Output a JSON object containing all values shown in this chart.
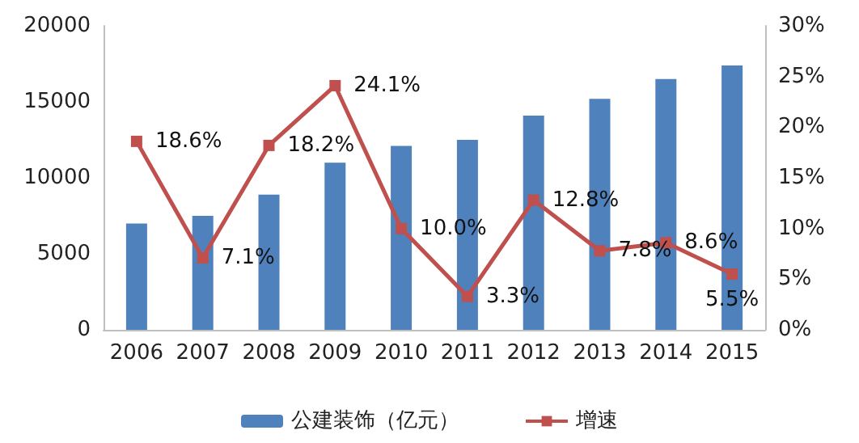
{
  "chart_data": {
    "type": "bar",
    "categories": [
      "2006",
      "2007",
      "2008",
      "2009",
      "2010",
      "2011",
      "2012",
      "2013",
      "2014",
      "2015"
    ],
    "series": [
      {
        "name": "公建装饰（亿元）",
        "type": "bar",
        "color": "#4f81bd",
        "values": [
          7000,
          7500,
          8900,
          11000,
          12100,
          12500,
          14100,
          15200,
          16500,
          17400
        ]
      },
      {
        "name": "增速",
        "type": "line",
        "axis": "y2",
        "color": "#c0504d",
        "marker": "square",
        "values": [
          18.6,
          7.1,
          18.2,
          24.1,
          10.0,
          3.3,
          12.8,
          7.8,
          8.6,
          5.5
        ],
        "value_labels": [
          "18.6%",
          "7.1%",
          "18.2%",
          "24.1%",
          "10.0%",
          "3.3%",
          "12.8%",
          "7.8%",
          "8.6%",
          "5.5%"
        ]
      }
    ],
    "ylim": [
      0,
      20000
    ],
    "yticks": [
      0,
      5000,
      10000,
      15000,
      20000
    ],
    "y2lim": [
      0,
      30
    ],
    "y2ticks": [
      {
        "value": 0,
        "label": "0%"
      },
      {
        "value": 5,
        "label": "5%"
      },
      {
        "value": 10,
        "label": "10%"
      },
      {
        "value": 15,
        "label": "15%"
      },
      {
        "value": 20,
        "label": "20%"
      },
      {
        "value": 25,
        "label": "25%"
      },
      {
        "value": 30,
        "label": "30%"
      }
    ],
    "grid": false,
    "legend": "bottom"
  }
}
